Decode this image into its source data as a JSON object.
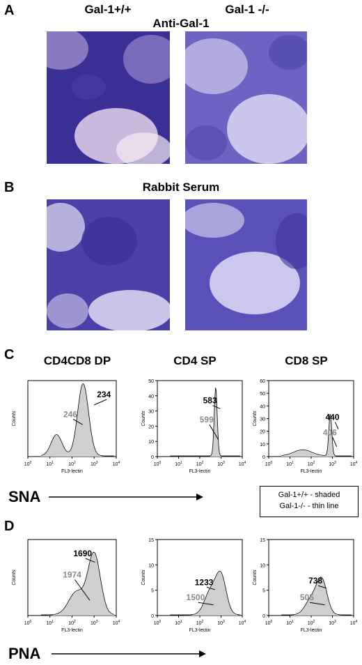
{
  "panels": {
    "A": {
      "letter": "A",
      "col1": "Gal-1+/+",
      "col2": "Gal-1 -/-",
      "subtitle": "Anti-Gal-1"
    },
    "B": {
      "letter": "B",
      "subtitle": "Rabbit Serum"
    },
    "C": {
      "letter": "C",
      "col1": "CD4CD8 DP",
      "col2": "CD4 SP",
      "col3": "CD8 SP",
      "lectin": "SNA"
    },
    "D": {
      "letter": "D",
      "lectin": "PNA"
    }
  },
  "legend": {
    "line1": "Gal-1+/+ - shaded",
    "line2": "Gal-1-/- - thin line"
  },
  "axis": {
    "ylabel": "Counts",
    "xlabel": "FL3-lectin"
  },
  "colors": {
    "tissue_dark": "#3f3596",
    "tissue_light": "#d9d3ee",
    "shade": "#cfcfcf",
    "gray_label": "#8a8a8a"
  },
  "chart_data": [
    {
      "type": "area",
      "id": "C-DP",
      "ylim": [
        0,
        null
      ],
      "xlim_log": [
        0,
        4
      ],
      "labels": [
        {
          "value": "246",
          "color": "gray"
        },
        {
          "value": "234",
          "color": "black"
        }
      ]
    },
    {
      "type": "area",
      "id": "C-CD4",
      "ylim": [
        0,
        50
      ],
      "yticks": [
        0,
        10,
        20,
        30,
        40,
        50
      ],
      "xlim_log": [
        0,
        4
      ],
      "labels": [
        {
          "value": "583",
          "color": "black"
        },
        {
          "value": "599",
          "color": "gray"
        }
      ]
    },
    {
      "type": "area",
      "id": "C-CD8",
      "ylim": [
        0,
        60
      ],
      "yticks": [
        0,
        10,
        20,
        30,
        40,
        50,
        60
      ],
      "xlim_log": [
        0,
        4
      ],
      "labels": [
        {
          "value": "440",
          "color": "black"
        },
        {
          "value": "406",
          "color": "gray"
        }
      ]
    },
    {
      "type": "area",
      "id": "D-DP",
      "ylim": [
        0,
        null
      ],
      "xlim_log": [
        0,
        4
      ],
      "labels": [
        {
          "value": "1690",
          "color": "black"
        },
        {
          "value": "1974",
          "color": "gray"
        }
      ]
    },
    {
      "type": "area",
      "id": "D-CD4",
      "ylim": [
        0,
        15
      ],
      "yticks": [
        0,
        5,
        10,
        15
      ],
      "xlim_log": [
        0,
        4
      ],
      "labels": [
        {
          "value": "1233",
          "color": "black"
        },
        {
          "value": "1500",
          "color": "gray"
        }
      ]
    },
    {
      "type": "area",
      "id": "D-CD8",
      "ylim": [
        0,
        15
      ],
      "yticks": [
        0,
        5,
        10,
        15
      ],
      "xlim_log": [
        0,
        4
      ],
      "labels": [
        {
          "value": "738",
          "color": "black"
        },
        {
          "value": "505",
          "color": "gray"
        }
      ]
    }
  ]
}
